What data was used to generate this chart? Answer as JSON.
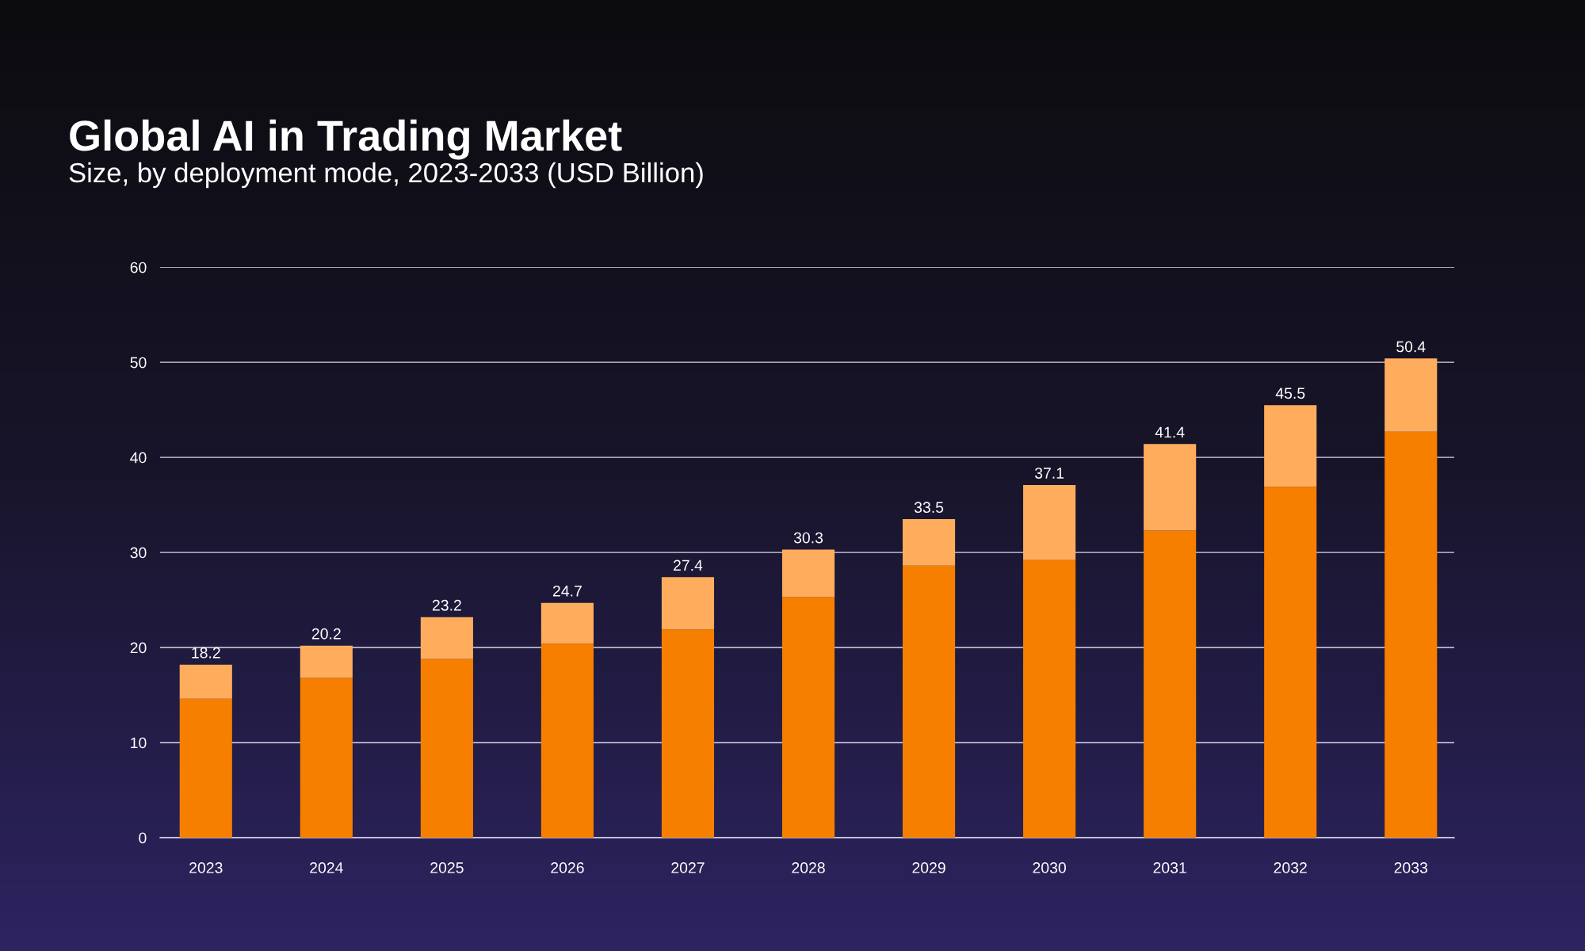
{
  "chart_data": {
    "type": "bar",
    "title": "Global AI in Trading Market",
    "subtitle": "Size, by deployment mode, 2023-2033 (USD Billion)",
    "categories": [
      "2023",
      "2024",
      "2025",
      "2026",
      "2027",
      "2028",
      "2029",
      "2030",
      "2031",
      "2032",
      "2033"
    ],
    "series": [
      {
        "color": "#f77f00",
        "values": [
          14.6,
          16.8,
          18.8,
          20.4,
          21.9,
          25.3,
          28.6,
          29.2,
          32.3,
          36.9,
          42.7
        ]
      },
      {
        "color": "#ffad5c",
        "values": [
          3.6,
          3.4,
          4.4,
          4.3,
          5.5,
          5.0,
          4.9,
          7.9,
          9.1,
          8.6,
          7.7
        ]
      }
    ],
    "stacked": true,
    "totals": [
      "18.2",
      "20.2",
      "23.2",
      "24.7",
      "27.4",
      "30.3",
      "33.5",
      "37.1",
      "41.4",
      "45.5",
      "50.4"
    ],
    "ylim": [
      0,
      60
    ],
    "yticks": [
      0,
      10,
      20,
      30,
      40,
      50,
      60
    ],
    "grid": "y"
  }
}
